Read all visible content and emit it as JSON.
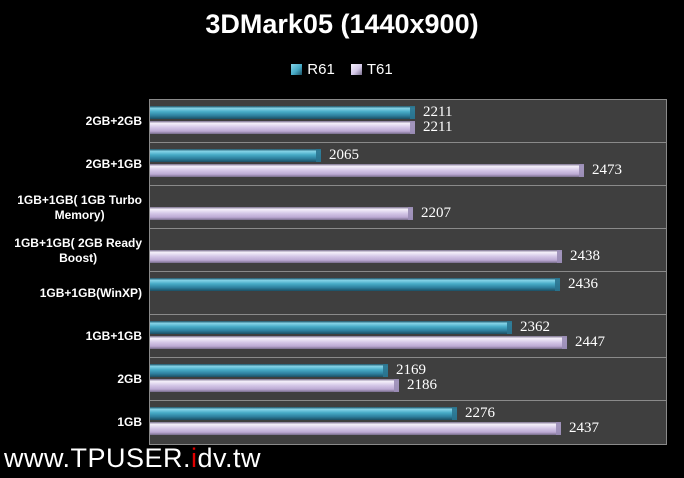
{
  "title": "3DMark05 (1440x900)",
  "legend": {
    "items": [
      {
        "label": "R61",
        "series": "r61"
      },
      {
        "label": "T61",
        "series": "t61"
      }
    ]
  },
  "footer": {
    "prefix": "www.TPUSER.",
    "highlight": "i",
    "suffix": "dv.tw"
  },
  "colors": {
    "page_bg": "#000000",
    "plot_bg": "#3f3f3f",
    "grid_line": "#8a8a8a",
    "text": "#ffffff",
    "r61_light": "#85d4e8",
    "r61_main": "#46aac6",
    "r61_shade": "#2d7e9c",
    "r61_edge": "#1c4f63",
    "r61_cap": "#2a7490",
    "t61_light": "#f5f0fb",
    "t61_main": "#d5c8e8",
    "t61_shade": "#bcaad4",
    "t61_edge": "#786e8c",
    "t61_cap": "#9a8db6",
    "footer_accent": "#e00000"
  },
  "chart_data": {
    "type": "bar",
    "orientation": "horizontal",
    "title": "3DMark05 (1440x900)",
    "categories": [
      "2GB+2GB",
      "2GB+1GB",
      "1GB+1GB( 1GB Turbo\nMemory)",
      "1GB+1GB( 2GB Ready\nBoost)",
      "1GB+1GB(WinXP)",
      "1GB+1GB",
      "2GB",
      "1GB"
    ],
    "series": [
      {
        "name": "R61",
        "values": [
          2211,
          2065,
          null,
          null,
          2436,
          2362,
          2169,
          2276
        ]
      },
      {
        "name": "T61",
        "values": [
          2211,
          2473,
          2207,
          2438,
          null,
          2447,
          2186,
          2437
        ]
      }
    ],
    "xlim": [
      1800,
      2600
    ],
    "axis_tick_labels_visible": false,
    "data_labels": true,
    "legend_position": "top",
    "grid": "category-separators"
  }
}
